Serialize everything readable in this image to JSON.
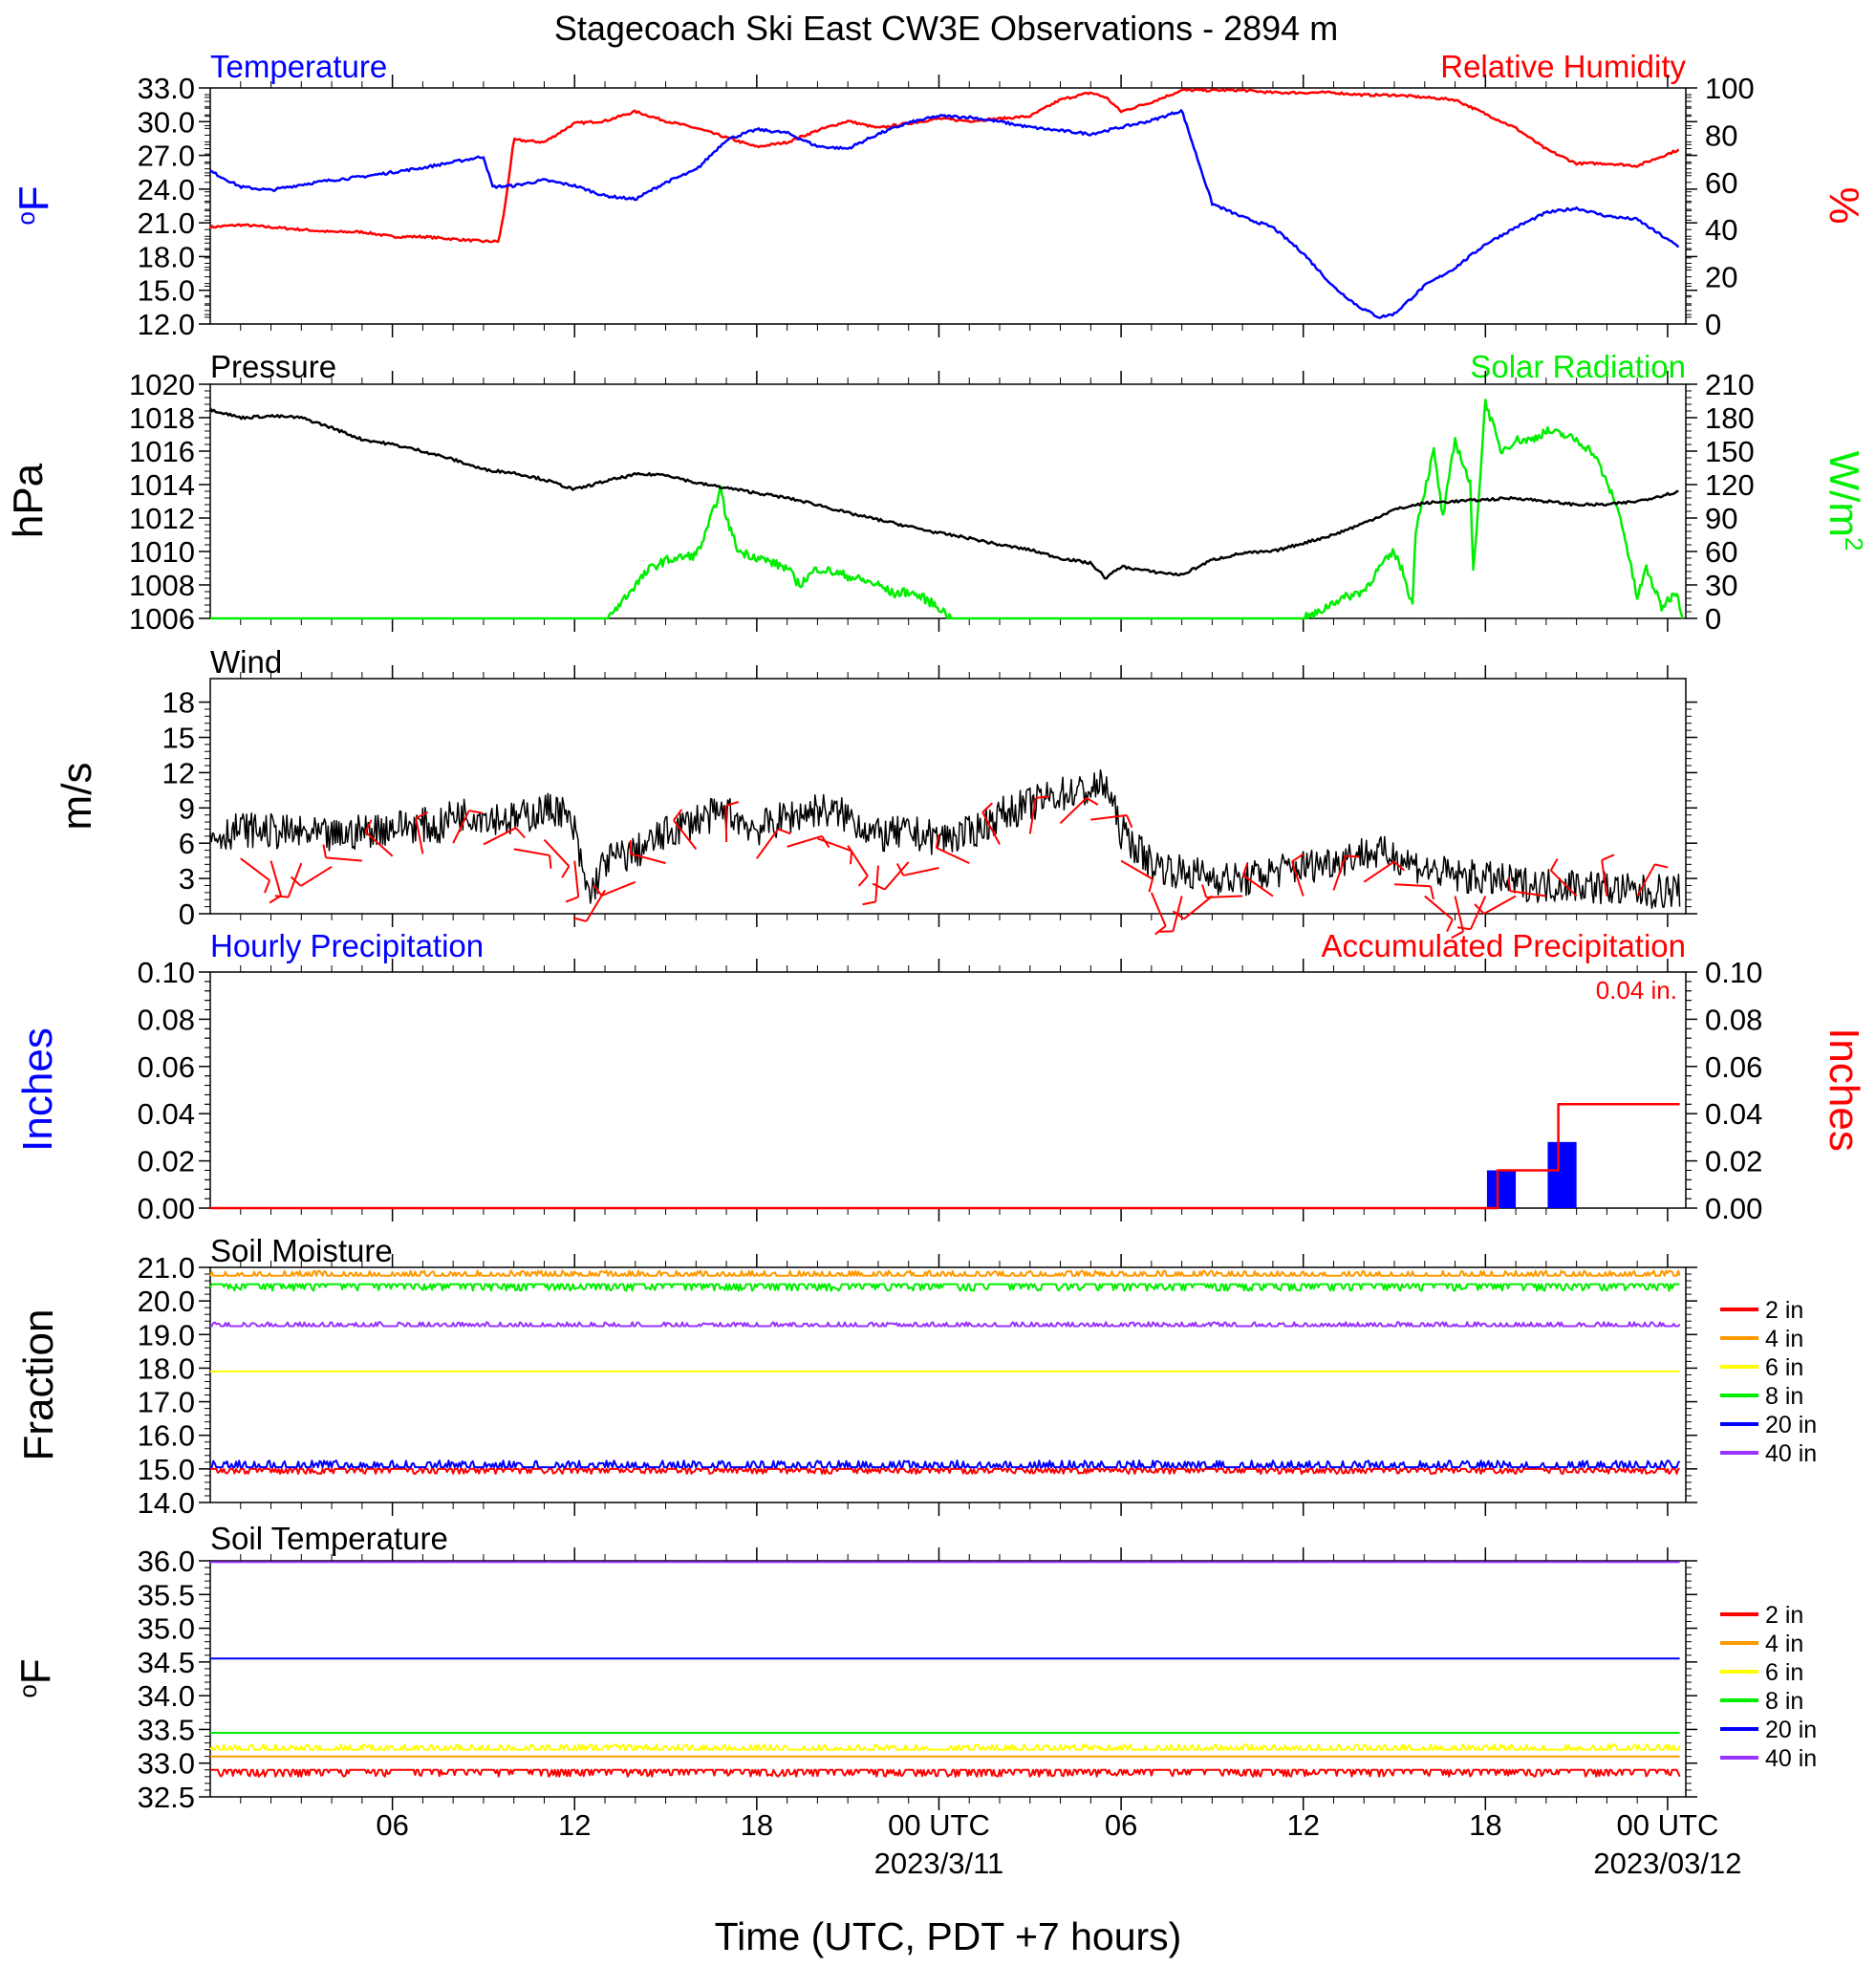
{
  "title": "Stagecoach Ski East CW3E Observations - 2894 m",
  "x_axis": {
    "title": "Time (UTC, PDT +7 hours)",
    "ticks": [
      {
        "hour": 6,
        "label": "06",
        "sub": ""
      },
      {
        "hour": 12,
        "label": "12",
        "sub": ""
      },
      {
        "hour": 18,
        "label": "18",
        "sub": ""
      },
      {
        "hour": 24,
        "label": "00 UTC",
        "sub": "2023/3/11"
      },
      {
        "hour": 30,
        "label": "06",
        "sub": ""
      },
      {
        "hour": 36,
        "label": "12",
        "sub": ""
      },
      {
        "hour": 42,
        "label": "18",
        "sub": ""
      },
      {
        "hour": 48,
        "label": "00 UTC",
        "sub": "2023/03/12"
      }
    ]
  },
  "colors": {
    "temperature": "#0000ff",
    "humidity": "#ff0000",
    "pressure": "#000000",
    "solar": "#00ee00",
    "wind": "#000000",
    "barbs": "#ff0000",
    "depth_2in": "#ff0000",
    "depth_4in": "#ff9900",
    "depth_6in": "#ffff00",
    "depth_8in": "#00ee00",
    "depth_20in": "#0000ff",
    "depth_40in": "#9933ff"
  },
  "chart_data": [
    {
      "type": "line",
      "panel": "temperature-humidity",
      "left_title": "Temperature",
      "right_title": "Relative Humidity",
      "ylabel_left": "oF",
      "ylabel_right": "%",
      "ylim_left": [
        12,
        33
      ],
      "ylim_right": [
        0,
        100
      ],
      "yticks_left": [
        "12.0",
        "15.0",
        "18.0",
        "21.0",
        "24.0",
        "27.0",
        "30.0",
        "33.0"
      ],
      "yticks_right": [
        "0",
        "20",
        "40",
        "60",
        "80",
        "100"
      ],
      "series": [
        {
          "name": "Temperature",
          "axis": "left",
          "x": [
            0,
            1,
            2,
            3,
            4,
            5,
            6,
            7,
            8,
            9,
            9.3,
            10,
            11,
            12,
            13,
            14,
            15,
            16,
            17,
            18,
            19,
            20,
            21,
            22,
            23,
            24,
            25,
            26,
            27,
            28,
            29,
            30,
            31,
            32,
            33,
            34,
            35,
            36,
            37,
            37.8,
            38.5,
            39,
            40,
            41,
            42,
            43,
            44,
            45,
            46,
            47,
            48.4
          ],
          "y": [
            25.6,
            24.2,
            23.9,
            24.4,
            24.8,
            25.1,
            25.5,
            25.9,
            26.4,
            26.9,
            24.2,
            24.3,
            24.8,
            24.3,
            23.4,
            23.1,
            24.6,
            25.7,
            28.4,
            29.3,
            29.0,
            27.8,
            27.6,
            28.9,
            29.9,
            30.5,
            30.4,
            30.0,
            29.5,
            29.2,
            28.9,
            29.5,
            30.1,
            31.0,
            22.7,
            21.5,
            20.6,
            18.3,
            15.3,
            13.6,
            12.6,
            12.9,
            15.4,
            17.0,
            19.1,
            20.6,
            21.9,
            22.3,
            21.6,
            21.3,
            18.8
          ]
        },
        {
          "name": "Relative Humidity",
          "axis": "right",
          "x": [
            0,
            1,
            2,
            3,
            4,
            5,
            6,
            7,
            8,
            9,
            9.5,
            9.7,
            10,
            11,
            12,
            13,
            14,
            15,
            16,
            17,
            18,
            19,
            20,
            21,
            22,
            23,
            24,
            25,
            26,
            27,
            28,
            29,
            29.5,
            30,
            31,
            32,
            33,
            34,
            35,
            36,
            37,
            38,
            39,
            40,
            41,
            42,
            43,
            44,
            45,
            46,
            47,
            48.4
          ],
          "y": [
            41,
            42,
            41,
            40,
            39,
            39,
            37,
            37,
            36,
            35,
            35,
            49,
            78,
            77,
            85,
            86,
            90,
            86,
            83,
            79,
            75,
            77,
            82,
            86,
            83,
            85,
            87,
            86,
            87,
            88,
            95,
            98,
            96,
            90,
            94,
            99,
            99,
            99,
            98,
            98,
            98,
            97,
            97,
            96,
            95,
            89,
            83,
            74,
            68,
            68,
            67,
            74
          ]
        }
      ]
    },
    {
      "type": "line",
      "panel": "pressure-solar",
      "left_title": "Pressure",
      "right_title": "Solar Radiation",
      "ylabel_left": "hPa",
      "ylabel_right": "W/m2",
      "ylim_left": [
        1006,
        1020
      ],
      "ylim_right": [
        0,
        210
      ],
      "yticks_left": [
        "1006",
        "1008",
        "1010",
        "1012",
        "1014",
        "1016",
        "1018",
        "1020"
      ],
      "yticks_right": [
        "0",
        "30",
        "60",
        "90",
        "120",
        "150",
        "180",
        "210"
      ],
      "series": [
        {
          "name": "Pressure",
          "axis": "left",
          "x": [
            0,
            1,
            2,
            3,
            4,
            5,
            6,
            7,
            8,
            9,
            10,
            11,
            12,
            13,
            14,
            15,
            16,
            17,
            18,
            19,
            20,
            21,
            22,
            23,
            24,
            25,
            26,
            27,
            28,
            29,
            29.5,
            30,
            31,
            32,
            33,
            34,
            35,
            36,
            37,
            38,
            39,
            40,
            41,
            42,
            43,
            44,
            45,
            46,
            47,
            48.4
          ],
          "y": [
            1018.5,
            1018.0,
            1018.1,
            1018.0,
            1017.4,
            1016.7,
            1016.4,
            1016.0,
            1015.5,
            1014.9,
            1014.7,
            1014.3,
            1013.7,
            1014.2,
            1014.6,
            1014.6,
            1014.1,
            1013.8,
            1013.5,
            1013.2,
            1012.8,
            1012.3,
            1011.9,
            1011.5,
            1011.1,
            1010.8,
            1010.4,
            1010.1,
            1009.6,
            1009.3,
            1008.4,
            1009.1,
            1008.8,
            1008.6,
            1009.5,
            1009.9,
            1010.0,
            1010.5,
            1011.0,
            1011.7,
            1012.5,
            1012.9,
            1013.0,
            1013.1,
            1013.2,
            1013.0,
            1012.8,
            1012.8,
            1013.0,
            1013.6
          ]
        },
        {
          "name": "Solar Radiation",
          "axis": "right",
          "x": [
            0,
            5,
            10,
            13.1,
            14,
            14.5,
            15,
            16,
            16.3,
            16.8,
            17,
            17.4,
            18,
            19,
            19.4,
            20,
            21,
            22,
            22.5,
            23,
            23.5,
            24,
            24.4,
            26,
            30,
            33,
            35,
            36,
            36.5,
            37,
            38,
            38.5,
            39,
            39.3,
            39.6,
            39.7,
            40.3,
            40.6,
            41,
            41.5,
            41.6,
            42,
            42.5,
            43,
            43.5,
            44,
            44.5,
            45,
            45.5,
            45.8,
            46,
            46.2,
            46.5,
            47,
            47.3,
            47.8,
            48.3,
            48.5
          ],
          "y": [
            0,
            0,
            0,
            0,
            30,
            45,
            52,
            57,
            74,
            116,
            90,
            60,
            55,
            45,
            30,
            45,
            38,
            30,
            22,
            24,
            18,
            10,
            0,
            0,
            0,
            0,
            0,
            0,
            5,
            15,
            25,
            45,
            60,
            40,
            12,
            80,
            150,
            90,
            160,
            120,
            40,
            195,
            150,
            160,
            160,
            168,
            165,
            160,
            150,
            135,
            120,
            110,
            85,
            18,
            45,
            10,
            25,
            0
          ]
        }
      ]
    },
    {
      "type": "line",
      "panel": "wind",
      "left_title": "Wind",
      "ylabel": "m/s",
      "ylim": [
        0,
        20
      ],
      "yticks": [
        "0",
        "3",
        "6",
        "9",
        "12",
        "15",
        "18"
      ],
      "series": [
        {
          "name": "Wind",
          "x": [
            0,
            1,
            2,
            3,
            4,
            5,
            6,
            7,
            7.5,
            8,
            9,
            10,
            11,
            11.5,
            12,
            12.3,
            12.5,
            13,
            14,
            15,
            16,
            17,
            18,
            19,
            20,
            21,
            22,
            23,
            24,
            25,
            26,
            27,
            28,
            29,
            29.5,
            30,
            31,
            32,
            33,
            34,
            35,
            36,
            37,
            38,
            39,
            40,
            41,
            42,
            43,
            44,
            45,
            46,
            47,
            48.4
          ],
          "y": [
            6.5,
            7.2,
            7.0,
            6.8,
            6.5,
            7.0,
            7.4,
            7.6,
            7.2,
            8.5,
            8.4,
            8.0,
            8.8,
            9.0,
            7.0,
            3.0,
            1.5,
            4.5,
            5.2,
            6.8,
            8.0,
            8.6,
            7.2,
            8.2,
            8.9,
            8.3,
            6.6,
            6.9,
            6.4,
            6.8,
            8.4,
            9.3,
            10.2,
            10.5,
            11.0,
            7.0,
            4.3,
            3.5,
            3.2,
            2.8,
            3.6,
            4.0,
            4.5,
            5.2,
            5.0,
            3.8,
            3.2,
            3.0,
            2.6,
            2.4,
            2.5,
            2.2,
            1.8,
            2.0
          ]
        }
      ]
    },
    {
      "type": "bar",
      "panel": "precipitation",
      "left_title": "Hourly Precipitation",
      "right_title": "Accumulated Precipitation",
      "annotation": "0.04 in.",
      "ylabel_left": "Inches",
      "ylabel_right": "Inches",
      "ylim": [
        0,
        0.1
      ],
      "yticks": [
        "0.00",
        "0.02",
        "0.04",
        "0.06",
        "0.08",
        "0.10"
      ],
      "series": [
        {
          "name": "Hourly Precipitation",
          "kind": "bar",
          "x": [
            42,
            44
          ],
          "y": [
            0.016,
            0.028
          ]
        },
        {
          "name": "Accumulated Precipitation",
          "kind": "step",
          "x": [
            0,
            42.4,
            42.4,
            44.4,
            44.4,
            48.4
          ],
          "y": [
            0,
            0,
            0.016,
            0.016,
            0.044,
            0.044
          ]
        }
      ]
    },
    {
      "type": "line",
      "panel": "soil-moisture",
      "left_title": "Soil Moisture",
      "ylabel": "Fraction",
      "ylim": [
        14,
        21
      ],
      "yticks": [
        "14.0",
        "15.0",
        "16.0",
        "17.0",
        "18.0",
        "19.0",
        "20.0",
        "21.0"
      ],
      "legend": [
        "2 in",
        "4 in",
        "6 in",
        "8 in",
        "20 in",
        "40 in"
      ],
      "legend_position": "right",
      "series": [
        {
          "name": "2 in",
          "level": 15.0,
          "noise": -0.15
        },
        {
          "name": "4 in",
          "level": 20.75,
          "noise": 0.15
        },
        {
          "name": "6 in",
          "level": 17.9,
          "noise": 0
        },
        {
          "name": "8 in",
          "level": 20.5,
          "noise": -0.2
        },
        {
          "name": "20 in",
          "level": 15.05,
          "noise": 0.2
        },
        {
          "name": "40 in",
          "level": 19.25,
          "noise": 0.12
        }
      ]
    },
    {
      "type": "line",
      "panel": "soil-temperature",
      "left_title": "Soil Temperature",
      "ylabel": "oF",
      "ylim": [
        32.5,
        36.0
      ],
      "yticks": [
        "32.5",
        "33.0",
        "33.5",
        "34.0",
        "34.5",
        "35.0",
        "35.5",
        "36.0"
      ],
      "legend": [
        "2 in",
        "4 in",
        "6 in",
        "8 in",
        "20 in",
        "40 in"
      ],
      "legend_position": "right",
      "series": [
        {
          "name": "2 in",
          "level": 32.9,
          "noise": -0.1
        },
        {
          "name": "4 in",
          "level": 33.1,
          "noise": 0
        },
        {
          "name": "6 in",
          "level": 33.2,
          "noise": 0.08
        },
        {
          "name": "8 in",
          "level": 33.45,
          "noise": 0
        },
        {
          "name": "20 in",
          "level": 34.55,
          "noise": 0
        },
        {
          "name": "40 in",
          "level": 35.98,
          "noise": 0
        }
      ]
    }
  ]
}
